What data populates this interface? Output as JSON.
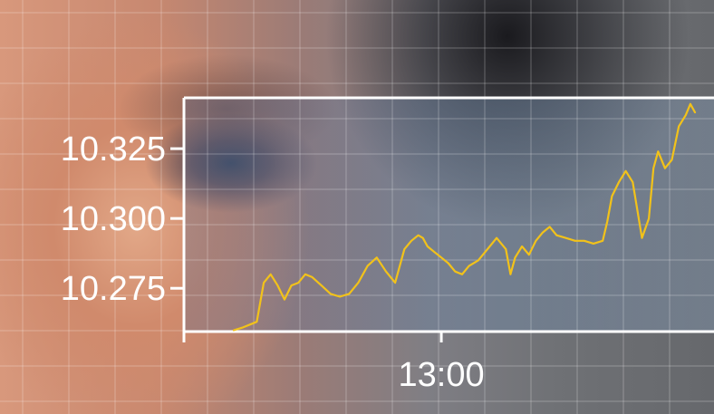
{
  "chart_data": {
    "type": "line",
    "title": "",
    "xlabel": "",
    "ylabel": "",
    "y_ticks": [
      10.325,
      10.3,
      10.275
    ],
    "y_tick_labels": [
      "10.325",
      "10.300",
      "10.275"
    ],
    "ylim": [
      10.2595,
      10.3432
    ],
    "x_ticks": [
      "13:00"
    ],
    "x_tick_positions": [
      0.45
    ],
    "xlim": [
      0,
      1
    ],
    "grid": true,
    "line_color": "#f2c21a",
    "series": [
      {
        "x": [
          0.0,
          0.02,
          0.035,
          0.05,
          0.065,
          0.08,
          0.095,
          0.11,
          0.125,
          0.14,
          0.155,
          0.17,
          0.19,
          0.21,
          0.23,
          0.25,
          0.27,
          0.29,
          0.31,
          0.33,
          0.35,
          0.37,
          0.385,
          0.4,
          0.41,
          0.42,
          0.435,
          0.45,
          0.465,
          0.48,
          0.495,
          0.51,
          0.53,
          0.55,
          0.57,
          0.59,
          0.6,
          0.61,
          0.625,
          0.64,
          0.655,
          0.67,
          0.685,
          0.7,
          0.72,
          0.74,
          0.76,
          0.78,
          0.8,
          0.81,
          0.82,
          0.835,
          0.85,
          0.865,
          0.875,
          0.885,
          0.9,
          0.91,
          0.92,
          0.935,
          0.95,
          0.965,
          0.98,
          0.99,
          1.0
        ],
        "y": [
          10.26,
          10.261,
          10.262,
          10.263,
          10.277,
          10.28,
          10.276,
          10.271,
          10.276,
          10.277,
          10.28,
          10.279,
          10.276,
          10.273,
          10.272,
          10.273,
          10.277,
          10.283,
          10.286,
          10.281,
          10.277,
          10.289,
          10.292,
          10.294,
          10.293,
          10.29,
          10.288,
          10.286,
          10.284,
          10.281,
          10.28,
          10.283,
          10.285,
          10.289,
          10.293,
          10.289,
          10.28,
          10.286,
          10.29,
          10.287,
          10.292,
          10.295,
          10.297,
          10.294,
          10.293,
          10.292,
          10.292,
          10.291,
          10.292,
          10.299,
          10.308,
          10.313,
          10.317,
          10.313,
          10.303,
          10.293,
          10.3,
          10.318,
          10.324,
          10.318,
          10.321,
          10.333,
          10.337,
          10.341,
          10.338
        ]
      }
    ]
  }
}
